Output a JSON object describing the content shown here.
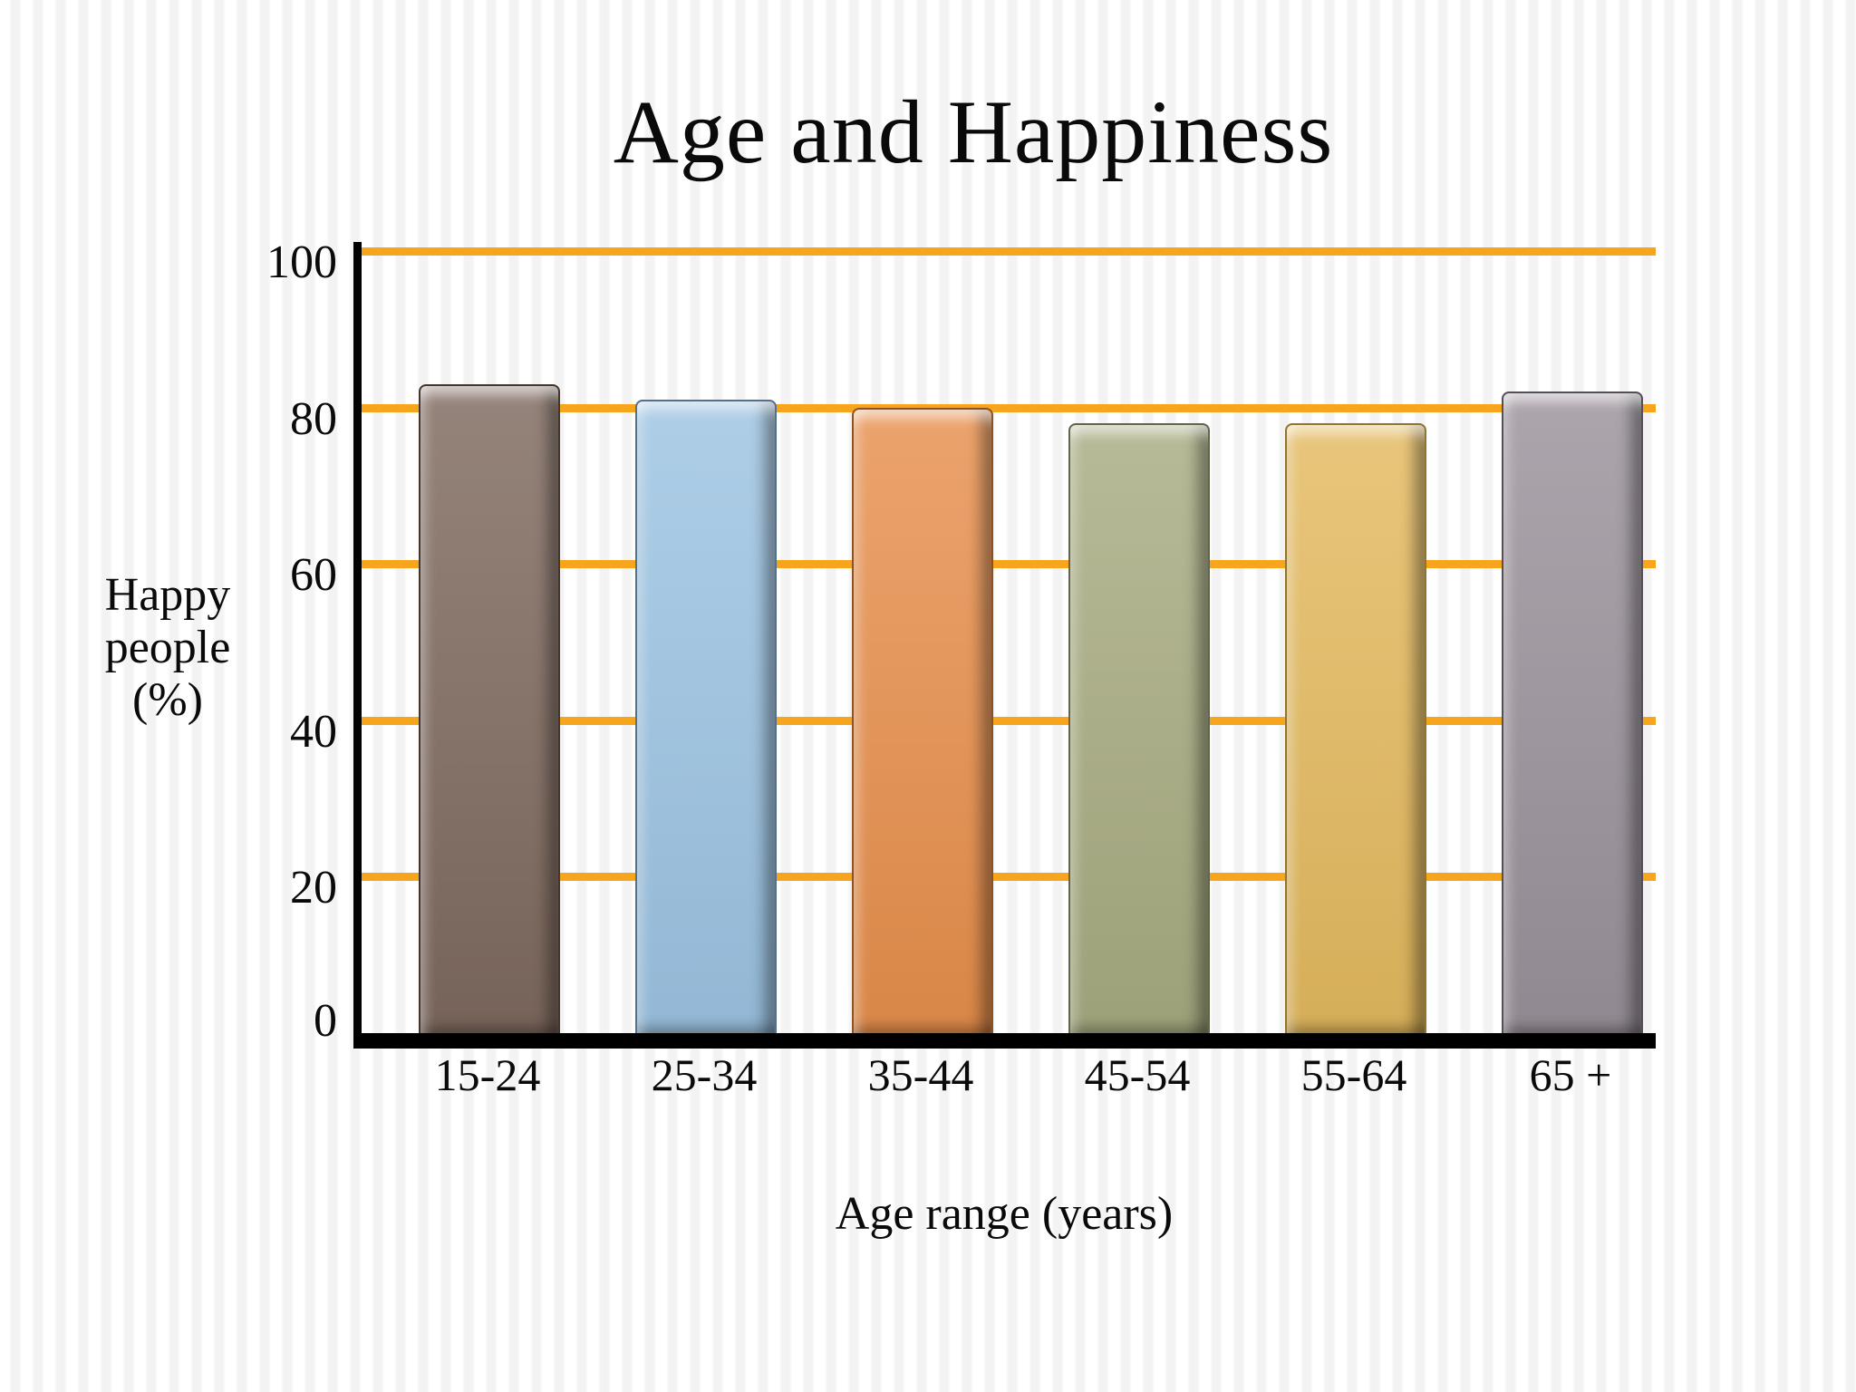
{
  "slide": {
    "title": "Age and Happiness"
  },
  "chart_data": {
    "type": "bar",
    "title": "Age and Happiness",
    "categories": [
      "15-24",
      "25-34",
      "35-44",
      "45-54",
      "55-64",
      "65 +"
    ],
    "values": [
      83,
      81,
      80,
      78,
      78,
      82
    ],
    "xlabel": "Age range (years)",
    "ylabel": "Happy people (%)",
    "ylabel_lines": [
      "Happy",
      "people",
      "(%)"
    ],
    "ylim": [
      0,
      100
    ],
    "yticks": [
      0,
      20,
      40,
      60,
      80,
      100
    ],
    "grid": "horizontal-only",
    "legend": "none",
    "gridline_color": "#F6A51C",
    "axis_color": "#000000",
    "bar_colors": [
      "#7E695E",
      "#9CC3E2",
      "#E78F4C",
      "#A7AB80",
      "#E3B95E",
      "#9A919A"
    ],
    "bar_edge_colors": [
      "#43362d",
      "#53718c",
      "#8f5120",
      "#62654a",
      "#92742a",
      "#544e56"
    ]
  }
}
